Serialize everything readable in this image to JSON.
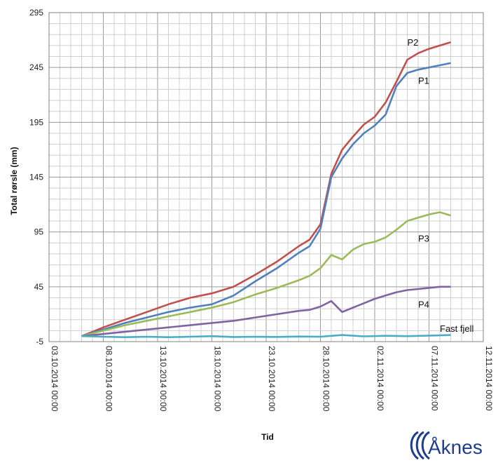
{
  "chart_data": {
    "type": "line",
    "xlabel": "Tid",
    "ylabel": "Total rørsle (mm)",
    "ylim": [
      -5,
      295
    ],
    "yticks": [
      -5,
      45,
      95,
      145,
      195,
      245,
      295
    ],
    "xlim": [
      "2014-10-03",
      "2014-11-12"
    ],
    "xticks": [
      "03.10.2014 00:00",
      "08.10.2014 00:00",
      "13.10.2014 00:00",
      "18.10.2014 00:00",
      "23.10.2014 00:00",
      "28.10.2014 00:00",
      "02.11.2014 00:00",
      "07.11.2014 00:00",
      "12.11.2014 00:00"
    ],
    "grid": true,
    "series": [
      {
        "name": "P2",
        "color": "#c0504d",
        "x": [
          "2014-10-06",
          "2014-10-08",
          "2014-10-10",
          "2014-10-12",
          "2014-10-14",
          "2014-10-16",
          "2014-10-18",
          "2014-10-20",
          "2014-10-22",
          "2014-10-24",
          "2014-10-26",
          "2014-10-27",
          "2014-10-28",
          "2014-10-29",
          "2014-10-30",
          "2014-10-31",
          "2014-11-01",
          "2014-11-02",
          "2014-11-03",
          "2014-11-04",
          "2014-11-05",
          "2014-11-06",
          "2014-11-07",
          "2014-11-08",
          "2014-11-09"
        ],
        "y": [
          0,
          8,
          15,
          22,
          29,
          35,
          39,
          45,
          56,
          68,
          82,
          88,
          102,
          148,
          170,
          182,
          193,
          200,
          213,
          232,
          252,
          258,
          262,
          265,
          268
        ]
      },
      {
        "name": "P1",
        "color": "#4f81bd",
        "x": [
          "2014-10-06",
          "2014-10-08",
          "2014-10-10",
          "2014-10-12",
          "2014-10-14",
          "2014-10-16",
          "2014-10-18",
          "2014-10-20",
          "2014-10-22",
          "2014-10-24",
          "2014-10-26",
          "2014-10-27",
          "2014-10-28",
          "2014-10-29",
          "2014-10-30",
          "2014-10-31",
          "2014-11-01",
          "2014-11-02",
          "2014-11-03",
          "2014-11-04",
          "2014-11-05",
          "2014-11-06",
          "2014-11-07",
          "2014-11-08",
          "2014-11-09"
        ],
        "y": [
          0,
          6,
          12,
          17,
          22,
          26,
          29,
          37,
          50,
          62,
          76,
          82,
          98,
          145,
          162,
          175,
          185,
          192,
          202,
          228,
          240,
          243,
          245,
          247,
          249
        ]
      },
      {
        "name": "P3",
        "color": "#9bbb59",
        "x": [
          "2014-10-06",
          "2014-10-08",
          "2014-10-10",
          "2014-10-12",
          "2014-10-14",
          "2014-10-16",
          "2014-10-18",
          "2014-10-20",
          "2014-10-22",
          "2014-10-24",
          "2014-10-26",
          "2014-10-27",
          "2014-10-28",
          "2014-10-29",
          "2014-10-30",
          "2014-10-31",
          "2014-11-01",
          "2014-11-02",
          "2014-11-03",
          "2014-11-04",
          "2014-11-05",
          "2014-11-06",
          "2014-11-07",
          "2014-11-08",
          "2014-11-09"
        ],
        "y": [
          0,
          5,
          10,
          14,
          18,
          22,
          26,
          31,
          38,
          44,
          51,
          55,
          62,
          74,
          70,
          79,
          84,
          86,
          90,
          97,
          105,
          108,
          111,
          113,
          110
        ]
      },
      {
        "name": "P4",
        "color": "#8064a2",
        "x": [
          "2014-10-06",
          "2014-10-08",
          "2014-10-10",
          "2014-10-12",
          "2014-10-14",
          "2014-10-16",
          "2014-10-18",
          "2014-10-20",
          "2014-10-22",
          "2014-10-24",
          "2014-10-26",
          "2014-10-27",
          "2014-10-28",
          "2014-10-29",
          "2014-10-30",
          "2014-10-31",
          "2014-11-01",
          "2014-11-02",
          "2014-11-03",
          "2014-11-04",
          "2014-11-05",
          "2014-11-06",
          "2014-11-07",
          "2014-11-08",
          "2014-11-09"
        ],
        "y": [
          0,
          2,
          4,
          6,
          8,
          10,
          12,
          14,
          17,
          20,
          23,
          24,
          27,
          32,
          22,
          26,
          30,
          34,
          37,
          40,
          42,
          43,
          44,
          45,
          45
        ]
      },
      {
        "name": "Fast fjell",
        "color": "#4bacc6",
        "x": [
          "2014-10-06",
          "2014-10-08",
          "2014-10-10",
          "2014-10-12",
          "2014-10-14",
          "2014-10-16",
          "2014-10-18",
          "2014-10-20",
          "2014-10-22",
          "2014-10-24",
          "2014-10-26",
          "2014-10-28",
          "2014-10-30",
          "2014-11-01",
          "2014-11-03",
          "2014-11-05",
          "2014-11-07",
          "2014-11-09"
        ],
        "y": [
          0,
          -0.5,
          -1,
          -0.5,
          -1,
          -0.5,
          0,
          -0.8,
          -0.5,
          -0.7,
          -0.3,
          -0.5,
          1,
          -0.2,
          0.3,
          0,
          0.5,
          1
        ]
      }
    ]
  },
  "brand": {
    "name": "Åknes",
    "color": "#1e3d8f"
  }
}
